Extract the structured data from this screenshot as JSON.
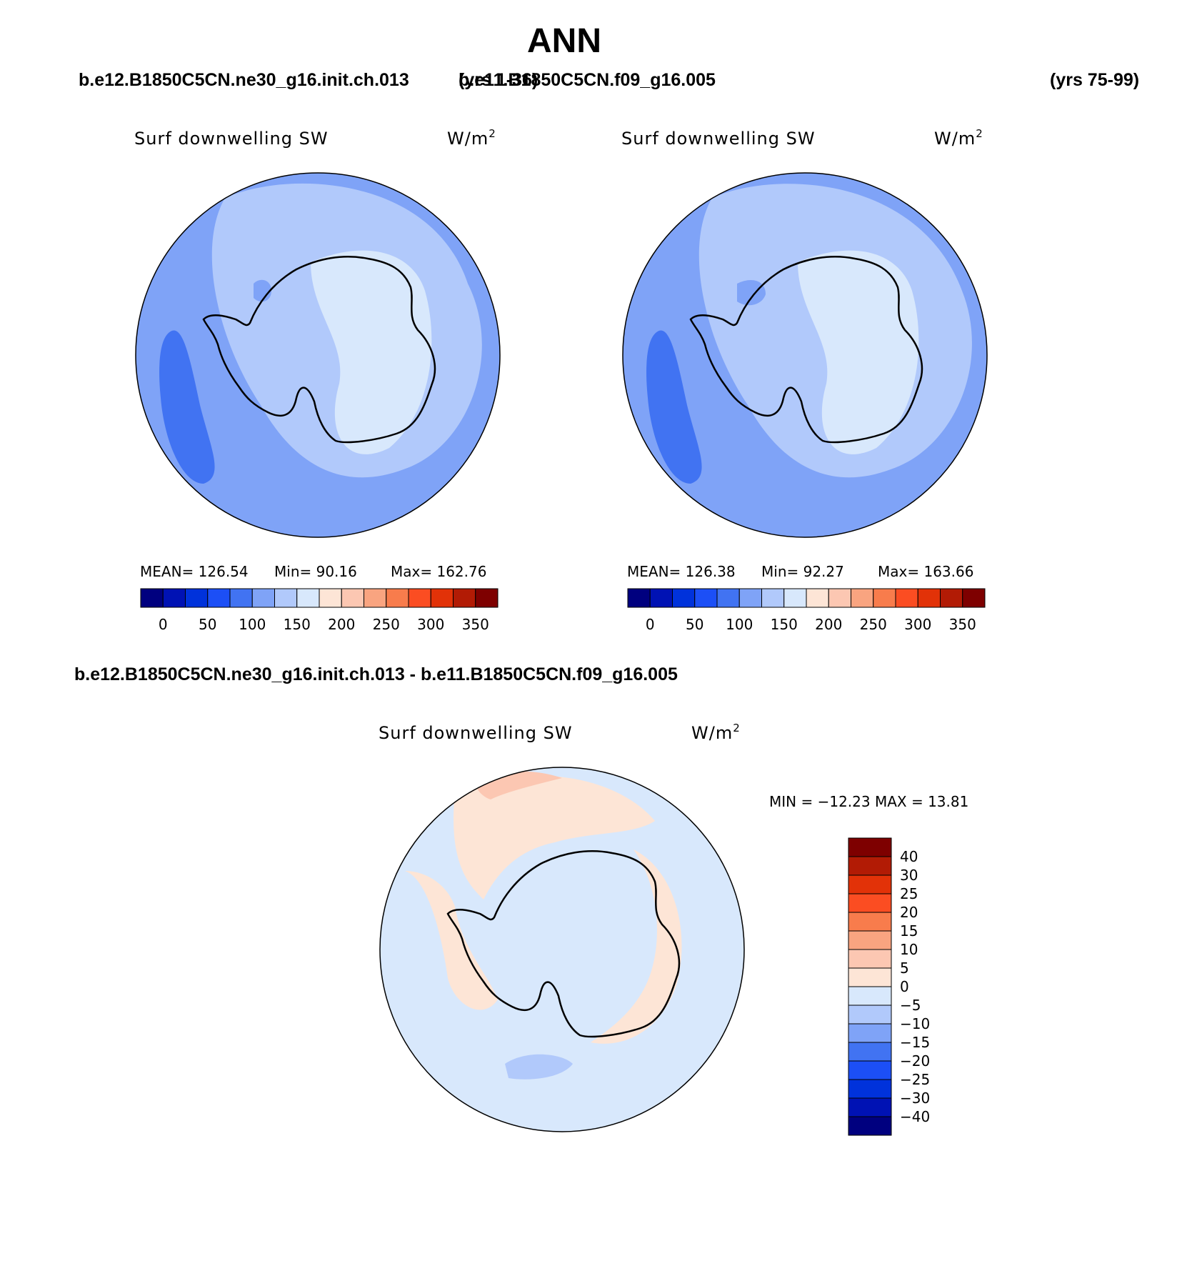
{
  "title": "ANN",
  "top_labels": {
    "case_a": "b.e12.B1850C5CN.ne30_g16.init.ch.013",
    "years_a": "(yrs 1-36)",
    "case_b": "b.e11.B1850C5CN.f09_g16.005",
    "years_b": "(yrs 75-99)"
  },
  "diff_label": "b.e12.B1850C5CN.ne30_g16.init.ch.013 - b.e11.B1850C5CN.f09_g16.005",
  "panels": [
    {
      "variable": "Surf downwelling SW",
      "units_base": "W/m",
      "units_exp": "2",
      "mean": "MEAN= 126.54",
      "min": "Min=   90.16",
      "max": "Max= 162.76"
    },
    {
      "variable": "Surf downwelling SW",
      "units_base": "W/m",
      "units_exp": "2",
      "mean": "MEAN= 126.38",
      "min": "Min=   92.27",
      "max": "Max= 163.66"
    }
  ],
  "diff_panel": {
    "variable": "Surf downwelling SW",
    "units_base": "W/m",
    "units_exp": "2",
    "minmax": "MIN = −12.23 MAX =   13.81"
  },
  "colorbar": {
    "colors": [
      "#00007f",
      "#0012b4",
      "#0032db",
      "#1c4ff6",
      "#4173f2",
      "#7fa3f7",
      "#b1c9fb",
      "#d8e8fc",
      "#fde5d6",
      "#fcc7b2",
      "#f9a480",
      "#f87c4c",
      "#fb4d22",
      "#e23208",
      "#b21b05",
      "#7e0000"
    ],
    "labels": [
      "0",
      "50",
      "100",
      "150",
      "200",
      "250",
      "300",
      "350"
    ]
  },
  "diff_colorbar": {
    "colors": [
      "#7e0000",
      "#b21b05",
      "#e23208",
      "#fb4d22",
      "#f87c4c",
      "#f9a480",
      "#fcc7b2",
      "#fde5d6",
      "#d8e8fc",
      "#b1c9fb",
      "#7fa3f7",
      "#4173f2",
      "#1c4ff6",
      "#0032db",
      "#0012b4",
      "#00007f"
    ],
    "labels": [
      "40",
      "30",
      "25",
      "20",
      "15",
      "10",
      "5",
      "0",
      "−5",
      "−10",
      "−15",
      "−20",
      "−25",
      "−30",
      "−40"
    ]
  }
}
